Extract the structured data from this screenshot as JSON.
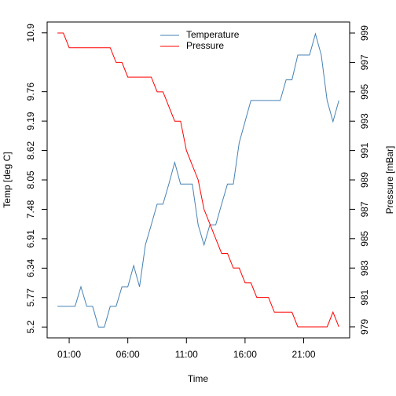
{
  "chart_data": {
    "type": "line",
    "xlabel": "Time",
    "ylabel": "Temp [deg C]",
    "y2label": "Pressure [mBar]",
    "x": [
      0,
      0.5,
      1,
      1.5,
      2,
      2.5,
      3,
      3.5,
      4,
      4.5,
      5,
      5.5,
      6,
      6.5,
      7,
      7.5,
      8,
      8.5,
      9,
      9.5,
      10,
      10.5,
      11,
      11.5,
      12,
      12.5,
      13,
      13.5,
      14,
      14.5,
      15,
      15.5,
      16,
      16.5,
      17,
      17.5,
      18,
      18.5,
      19,
      19.5,
      20,
      20.5,
      21,
      21.5,
      22,
      22.5,
      23,
      23.5,
      24
    ],
    "series": [
      {
        "name": "Temperature",
        "color": "#4682b4",
        "values": [
          5.6,
          5.6,
          5.6,
          5.6,
          5.98,
          5.6,
          5.6,
          5.2,
          5.2,
          5.6,
          5.6,
          5.98,
          5.98,
          6.39,
          5.98,
          6.79,
          7.18,
          7.58,
          7.58,
          7.97,
          8.39,
          7.97,
          7.97,
          7.97,
          7.18,
          6.79,
          7.18,
          7.18,
          7.58,
          7.97,
          7.97,
          8.77,
          9.18,
          9.59,
          9.59,
          9.59,
          9.59,
          9.59,
          9.59,
          9.99,
          9.99,
          10.47,
          10.47,
          10.47,
          10.88,
          10.47,
          9.59,
          9.18,
          9.59
        ]
      },
      {
        "name": "Pressure",
        "color": "#ff0000",
        "axis": "y2",
        "values": [
          999,
          999,
          998,
          998,
          998,
          998,
          998,
          998,
          998,
          998,
          997,
          997,
          996,
          996,
          996,
          996,
          996,
          995,
          995,
          994,
          993,
          993,
          991,
          990,
          989,
          987,
          986,
          985,
          984,
          984,
          983,
          983,
          982,
          982,
          981,
          981,
          981,
          980,
          980,
          980,
          980,
          979,
          979,
          979,
          979,
          979,
          979,
          980,
          979
        ]
      }
    ],
    "xlim": [
      -0.88,
      24.92
    ],
    "xticks": [
      {
        "value": 1,
        "label": "01:00"
      },
      {
        "value": 6,
        "label": "06:00"
      },
      {
        "value": 11,
        "label": "11:00"
      },
      {
        "value": 16,
        "label": "16:00"
      },
      {
        "value": 21,
        "label": "21:00"
      }
    ],
    "ylim": [
      4.99,
      11.11
    ],
    "yticks": [
      5.2,
      5.77,
      6.34,
      6.91,
      7.48,
      8.05,
      8.62,
      9.19,
      9.76,
      10.9
    ],
    "y2lim": [
      978.25,
      999.75
    ],
    "y2ticks": [
      979,
      981,
      983,
      985,
      987,
      989,
      991,
      993,
      995,
      997,
      999
    ],
    "legend": "top"
  }
}
